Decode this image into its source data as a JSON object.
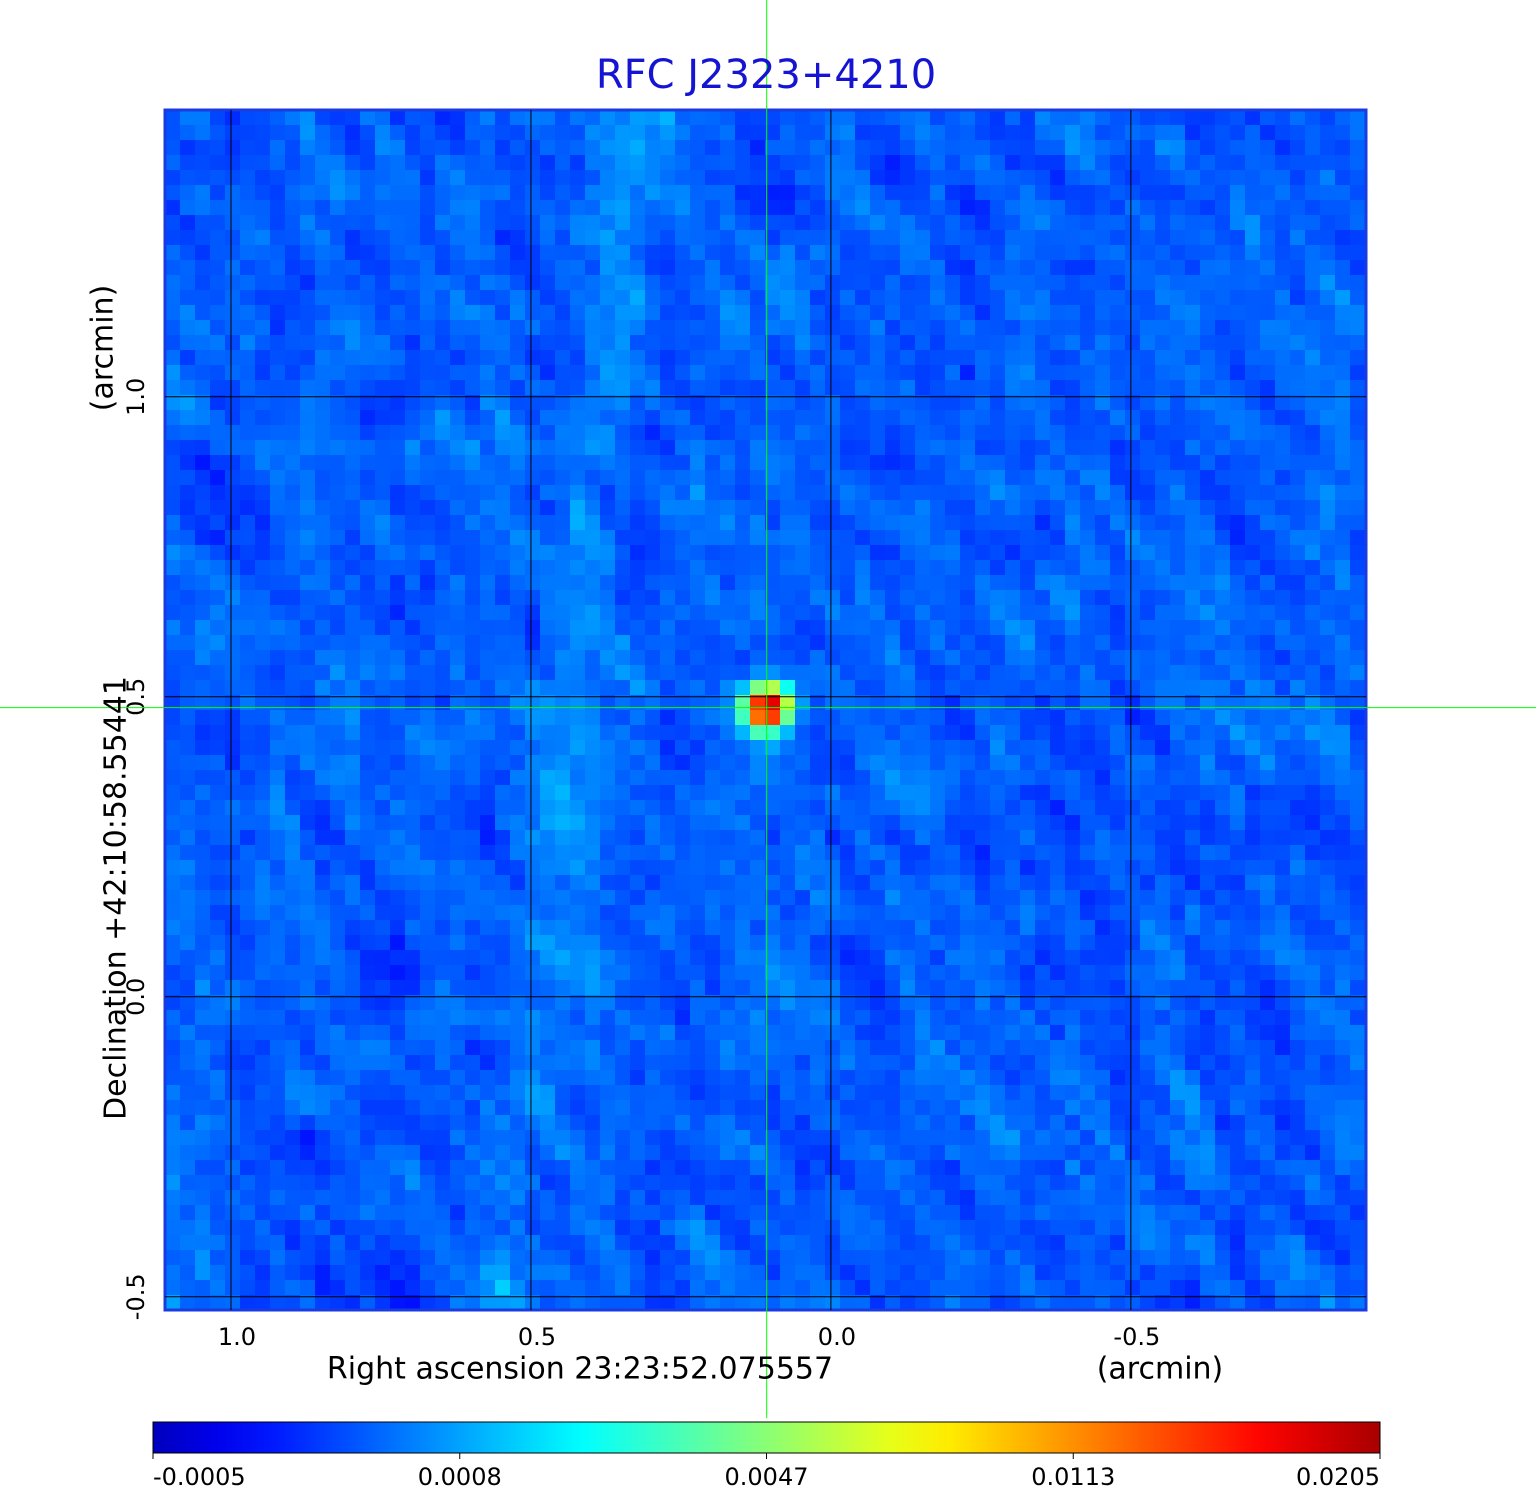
{
  "chart_data": {
    "type": "image",
    "title": "RFC J2323+4210",
    "x_label": "Right ascension  23:23:52.075557",
    "x_unit": "(arcmin)",
    "y_label": "Declination  +42:10:58.55441",
    "y_unit": "(arcmin)",
    "xlim": [
      1.11,
      -0.892
    ],
    "ylim": [
      -0.522,
      1.478
    ],
    "xticks": [
      {
        "value": 1,
        "label": "1.0"
      },
      0.5,
      {
        "value": 0,
        "label": "0.0"
      },
      -0.5
    ],
    "yticks": [
      {
        "value": 1,
        "label": "1.0"
      },
      0.5,
      {
        "value": 0,
        "label": "0.0"
      },
      -0.5
    ],
    "grid": true,
    "crosshair": {
      "x": 0.107,
      "y": 0.482,
      "color": "#00ff00"
    },
    "colorbar": {
      "colormap": "jet",
      "ticks": [
        -0.0005,
        0.0008,
        0.0047,
        0.0113,
        0.0205
      ]
    }
  }
}
